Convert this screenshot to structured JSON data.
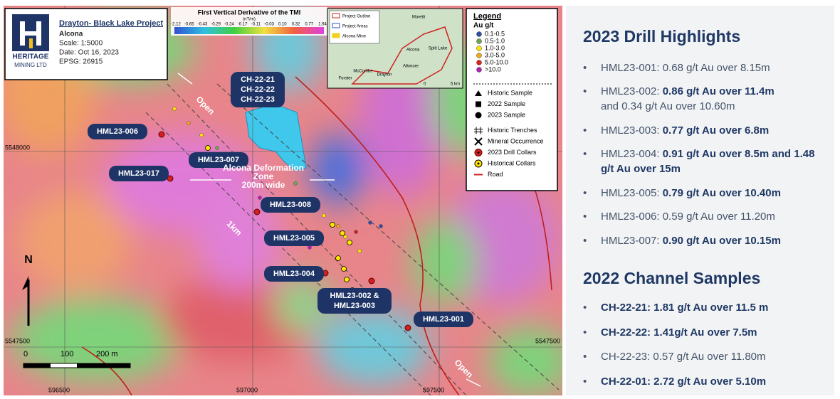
{
  "title_box": {
    "logo_top": "HERITAGE",
    "logo_bottom": "MINING LTD",
    "project": "Drayton- Black Lake Project",
    "location": "Alcona",
    "scale": "Scale: 1:5000",
    "date": "Date: Oct 16, 2023",
    "epsg": "EPSG: 26915"
  },
  "colorbar": {
    "title": "First Vertical Derivative of the TMI",
    "unit": "(nT/m)",
    "ticks": [
      "-2.12",
      "-0.65",
      "-0.43",
      "-0.29",
      "-0.24",
      "-0.17",
      "-0.11",
      "-0.03",
      "0.10",
      "0.32",
      "0.77",
      "1.94"
    ]
  },
  "inset": {
    "legend": [
      "Project Outline",
      "Project Areas",
      "Alcona Mine"
    ],
    "places": [
      "Moretti",
      "Split Lake",
      "Alcona",
      "Alkmore",
      "Drayton",
      "McCombe",
      "Forster"
    ],
    "scale": [
      "0",
      "5 km"
    ]
  },
  "legend": {
    "title": "Legend",
    "subtitle": "Au g/t",
    "grades": [
      {
        "label": "0.1-0.5",
        "color": "#2e4fa8"
      },
      {
        "label": "0.5-1.0",
        "color": "#6aa84f"
      },
      {
        "label": "1.0-3.0",
        "color": "#ffe600"
      },
      {
        "label": "3.0-5.0",
        "color": "#f4a81a"
      },
      {
        "label": "5.0-10.0",
        "color": "#e0201b"
      },
      {
        "label": ">10.0",
        "color": "#b41fb4"
      }
    ],
    "symbols": [
      "Historic Sample",
      "2022 Sample",
      "2023 Sample",
      "Historic Trenches",
      "Mineral Occurrence",
      "2023 Drill Collars",
      "Historical Collars",
      "Road"
    ]
  },
  "map_labels": {
    "collars": [
      [
        "HML23-006"
      ],
      [
        "HML23-017"
      ],
      [
        "HML23-007"
      ],
      [
        "CH-22-21",
        "CH-22-22",
        "CH-22-23"
      ],
      [
        "HML23-008"
      ],
      [
        "HML23-005"
      ],
      [
        "HML23-004"
      ],
      [
        "HML23-002 &",
        "HML23-003"
      ],
      [
        "HML23-001"
      ]
    ],
    "open": [
      "Open",
      "Open"
    ],
    "distance": "1km",
    "zone": [
      "Alcona Deformation",
      "Zone",
      "200m wide"
    ],
    "north": "N",
    "scalebar": [
      "0",
      "100",
      "200 m"
    ],
    "northings": [
      "5548000",
      "5547500",
      "5547500"
    ],
    "eastings": [
      "596500",
      "597000",
      "597500"
    ]
  },
  "panel": [
    {
      "heading": "2023 Drill Highlights",
      "items": [
        [
          {
            "t": "HML23-001: 0.68 g/t Au over 8.15m"
          }
        ],
        [
          {
            "t": "HML23-002: "
          },
          {
            "t": "0.86 g/t Au over 11.4m",
            "b": true
          },
          {
            "t": "and 0.34 g/t Au over 10.60m",
            "br": true
          }
        ],
        [
          {
            "t": "HML23-003: "
          },
          {
            "t": "0.77 g/t Au over 6.8m",
            "b": true
          }
        ],
        [
          {
            "t": "HML23-004: "
          },
          {
            "t": "0.91 g/t Au over 8.5m and 1.48 g/t Au over 15m",
            "b": true
          }
        ],
        [
          {
            "t": "HML23-005: "
          },
          {
            "t": "0.79 g/t Au over 10.40m",
            "b": true
          }
        ],
        [
          {
            "t": "HML23-006: 0.59 g/t Au over 11.20m"
          }
        ],
        [
          {
            "t": "HML23-007: "
          },
          {
            "t": "0.90 g/t Au over 10.15m",
            "b": true
          }
        ]
      ]
    },
    {
      "heading": "2022 Channel Samples",
      "items": [
        [
          {
            "t": "CH-22-21: 1.81 g/t Au over  11.5 m",
            "b": true
          }
        ],
        [
          {
            "t": "CH-22-22: 1.41g/t Au over 7.5m",
            "b": true
          }
        ],
        [
          {
            "t": "CH-22-23: 0.57 g/t Au over 11.80m"
          }
        ],
        [
          {
            "t": "CH-22-01: 2.72 g/t Au over 5.10m",
            "b": true
          }
        ]
      ]
    }
  ]
}
